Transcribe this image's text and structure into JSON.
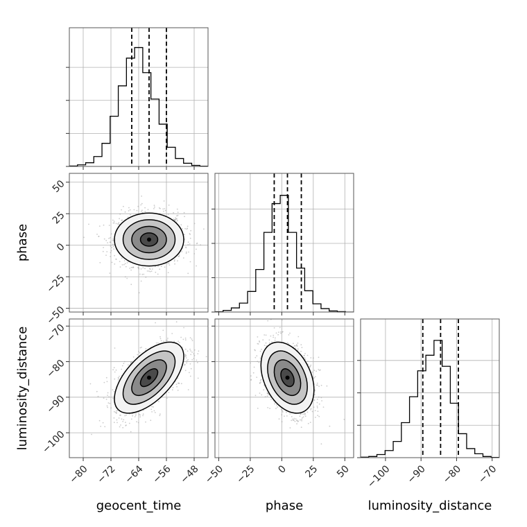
{
  "chart_data": {
    "type": "corner",
    "parameters": [
      {
        "name": "geocent_time",
        "range": [
          -84.0,
          -44.0
        ],
        "ticks": [
          -80,
          -72,
          -64,
          -56,
          -48
        ],
        "tick_labels": [
          "−80",
          "−72",
          "−64",
          "−56",
          "−48"
        ],
        "quantiles": [
          -66.0,
          -61.0,
          -56.0
        ],
        "histogram": [
          0.3,
          1.2,
          2.8,
          7.5,
          17.5,
          38.0,
          61.0,
          82.0,
          90.0,
          71.0,
          51.0,
          32.0,
          14.5,
          6.0,
          2.4,
          0.8,
          0.2
        ],
        "hist_max": 105
      },
      {
        "name": "phase",
        "range": [
          -53.0,
          57.0
        ],
        "ticks": [
          -50,
          -25,
          0,
          25,
          50
        ],
        "tick_labels": [
          "−50",
          "−25",
          "0",
          "25",
          "50"
        ],
        "quantiles": [
          -6.0,
          4.5,
          15.5
        ],
        "histogram": [
          0.2,
          1.2,
          3.0,
          6.5,
          15.0,
          31.0,
          58.0,
          79.0,
          85.0,
          58.0,
          32.0,
          15.5,
          6.0,
          2.5,
          0.8,
          0.3,
          0.0
        ],
        "hist_max": 101
      },
      {
        "name": "luminosity_distance",
        "range": [
          -107.0,
          -68.0
        ],
        "ticks": [
          -100,
          -90,
          -80,
          -70
        ],
        "tick_labels": [
          "−100",
          "−90",
          "−80",
          "−70"
        ],
        "quantiles": [
          -89.5,
          -84.5,
          -79.5
        ],
        "histogram": [
          0.4,
          0.9,
          2.4,
          5.5,
          12.5,
          27.0,
          47.0,
          67.0,
          79.0,
          90.5,
          70.5,
          42.0,
          18.5,
          7.0,
          3.0,
          0.9,
          0.2
        ],
        "hist_max": 107
      }
    ],
    "correlations": {
      "1_0": 0.0,
      "2_0": 0.6,
      "2_1": -0.35
    },
    "center": [
      -61.0,
      4.5,
      -84.5
    ],
    "sigma": [
      5.0,
      10.5,
      5.0
    ],
    "contour_levels": [
      0.5,
      1.0,
      1.5,
      2.0
    ],
    "grid": true,
    "scatter_color": "#a0a0a0",
    "line_color": "#000000",
    "grid_color": "#b0b0b0"
  }
}
